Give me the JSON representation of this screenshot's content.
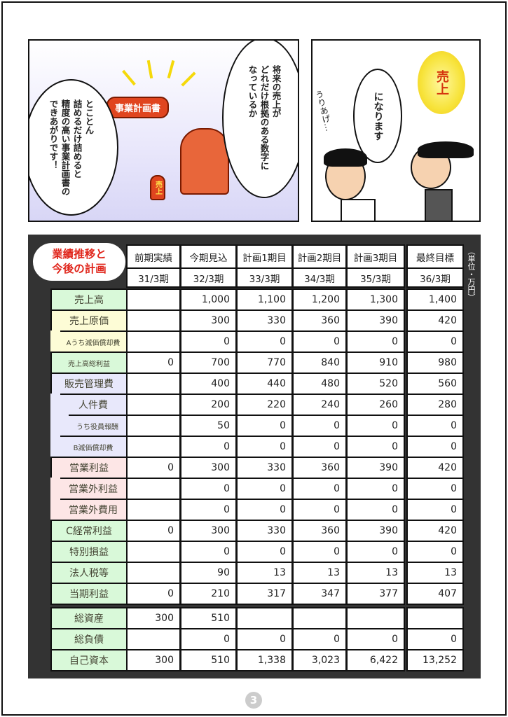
{
  "panel1": {
    "bubble_left": "とことん\n詰めるだけ詰めると\n精度の高い事業計画書の\nできあがりです！",
    "bubble_right": "将来の売上が\nどれだけ根拠のある数字に\nなっているか",
    "sign": "事業計画書",
    "flask_label": "売上"
  },
  "panel2": {
    "sun_label": "売上",
    "bubble": "になります",
    "mumble": "うりあげ…"
  },
  "table": {
    "title_line1": "業績推移と",
    "title_line2": "今後の計画",
    "unit": "（単位・万円）",
    "columns": [
      {
        "label": "前期実績",
        "period": "31/3期"
      },
      {
        "label": "今期見込",
        "period": "32/3期"
      },
      {
        "label": "計画1期目",
        "period": "33/3期"
      },
      {
        "label": "計画2期目",
        "period": "34/3期"
      },
      {
        "label": "計画3期目",
        "period": "35/3期"
      },
      {
        "label": "最終目標",
        "period": "36/3期"
      }
    ],
    "rows": [
      {
        "label": "売上高",
        "color": "#d9f9d9",
        "values": [
          "",
          "1,000",
          "1,100",
          "1,200",
          "1,300",
          "1,400"
        ]
      },
      {
        "label": "売上原価",
        "color": "#fdfcd6",
        "values": [
          "",
          "300",
          "330",
          "360",
          "390",
          "420"
        ]
      },
      {
        "label": "Aうち減価償却費",
        "color": "#fdfcd6",
        "values": [
          "",
          "0",
          "0",
          "0",
          "0",
          "0"
        ]
      },
      {
        "label": "売上高総利益",
        "color": "#d9f9d9",
        "values": [
          "0",
          "700",
          "770",
          "840",
          "910",
          "980"
        ]
      },
      {
        "label": "販売管理費",
        "color": "#e8e8fb",
        "values": [
          "",
          "400",
          "440",
          "480",
          "520",
          "560"
        ]
      },
      {
        "label": "人件費",
        "color": "#e8e8fb",
        "values": [
          "",
          "200",
          "220",
          "240",
          "260",
          "280"
        ]
      },
      {
        "label": "うち役員報酬",
        "color": "#e8e8fb",
        "values": [
          "",
          "50",
          "0",
          "0",
          "0",
          "0"
        ]
      },
      {
        "label": "B減価償却費",
        "color": "#e8e8fb",
        "values": [
          "",
          "0",
          "0",
          "0",
          "0",
          "0"
        ]
      },
      {
        "label": "営業利益",
        "color": "#fde6e6",
        "values": [
          "0",
          "300",
          "330",
          "360",
          "390",
          "420"
        ]
      },
      {
        "label": "営業外利益",
        "color": "#fde6e6",
        "values": [
          "",
          "0",
          "0",
          "0",
          "0",
          "0"
        ]
      },
      {
        "label": "営業外費用",
        "color": "#fde6e6",
        "values": [
          "",
          "0",
          "0",
          "0",
          "0",
          "0"
        ]
      },
      {
        "label": "C経常利益",
        "color": "#d9f9d9",
        "values": [
          "0",
          "300",
          "330",
          "360",
          "390",
          "420"
        ]
      },
      {
        "label": "特別損益",
        "color": "#d9f9d9",
        "values": [
          "",
          "0",
          "0",
          "0",
          "0",
          "0"
        ]
      },
      {
        "label": "法人税等",
        "color": "#d9f9d9",
        "values": [
          "",
          "90",
          "13",
          "13",
          "13",
          "13"
        ]
      },
      {
        "label": "当期利益",
        "color": "#d9f9d9",
        "values": [
          "0",
          "210",
          "317",
          "347",
          "377",
          "407"
        ]
      }
    ],
    "balance_rows": [
      {
        "label": "総資産",
        "color": "#d9f9d9",
        "values": [
          "300",
          "510",
          "",
          "",
          "",
          ""
        ]
      },
      {
        "label": "総負債",
        "color": "#d9f9d9",
        "values": [
          "",
          "0",
          "0",
          "0",
          "0",
          "0"
        ]
      },
      {
        "label": "自己資本",
        "color": "#d9f9d9",
        "values": [
          "300",
          "510",
          "1,338",
          "3,023",
          "6,422",
          "13,252"
        ]
      }
    ]
  },
  "page_number": "3"
}
